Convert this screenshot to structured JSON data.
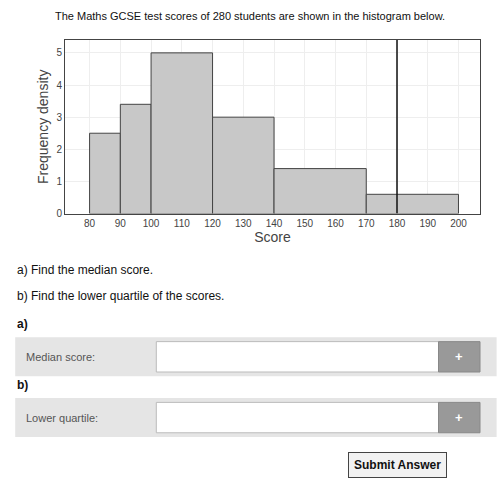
{
  "chart_data": {
    "type": "histogram",
    "title": "The Maths GCSE test scores of 280 students are shown in the histogram below.",
    "xlabel": "Score",
    "ylabel": "Frequency density",
    "bins": [
      80,
      90,
      100,
      120,
      140,
      170,
      200
    ],
    "values": [
      2.5,
      3.4,
      5.0,
      3.0,
      1.4,
      0.6
    ],
    "color": "#c8c8c8",
    "xlim": [
      72,
      207
    ],
    "ylim": [
      0,
      5.4
    ],
    "xticks": [
      80,
      90,
      100,
      110,
      120,
      130,
      140,
      150,
      160,
      170,
      180,
      190,
      200
    ],
    "yticks": [
      0,
      1,
      2,
      3,
      4,
      5
    ],
    "grid": true,
    "vertical_line": 180,
    "annotations": [
      "a) Find the median score.",
      "b) Find the lower quartile of the scores.",
      "a)",
      "Median score:",
      "+",
      "b)",
      "Lower quartile:",
      "+",
      "Submit Answer"
    ]
  }
}
